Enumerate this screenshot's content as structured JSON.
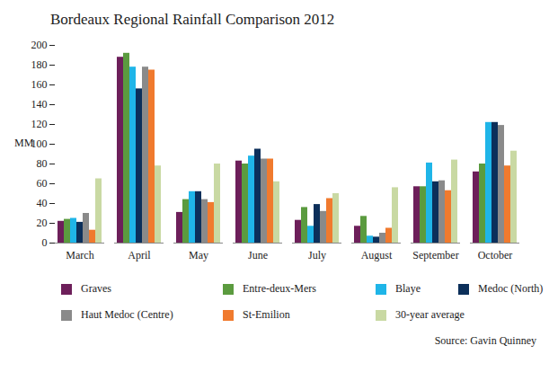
{
  "chart_data": {
    "type": "bar",
    "title": "Bordeaux Regional Rainfall Comparison 2012",
    "y_label": "MM",
    "source": "Source: Gavin Quinney",
    "categories": [
      "March",
      "April",
      "May",
      "June",
      "July",
      "August",
      "September",
      "October"
    ],
    "series": [
      {
        "name": "Graves",
        "color": "#6d1f5a",
        "values": [
          22,
          188,
          31,
          83,
          23,
          17,
          57,
          72
        ]
      },
      {
        "name": "Entre-deux-Mers",
        "color": "#5b9b3f",
        "values": [
          24,
          192,
          44,
          80,
          36,
          27,
          57,
          80
        ]
      },
      {
        "name": "Blaye",
        "color": "#1fb5e8",
        "values": [
          25,
          178,
          52,
          88,
          17,
          7,
          81,
          122
        ]
      },
      {
        "name": "Medoc (North)",
        "color": "#0c2f5a",
        "values": [
          21,
          156,
          52,
          95,
          39,
          6,
          62,
          122
        ]
      },
      {
        "name": "Haut Medoc (Centre)",
        "color": "#8a8a8a",
        "values": [
          30,
          178,
          44,
          85,
          32,
          10,
          63,
          119
        ]
      },
      {
        "name": "St-Emilion",
        "color": "#f07a2e",
        "values": [
          13,
          175,
          41,
          85,
          45,
          15,
          53,
          78
        ]
      },
      {
        "name": "30-year average",
        "color": "#c9d9a3",
        "values": [
          65,
          78,
          80,
          62,
          50,
          56,
          84,
          93
        ]
      }
    ],
    "ylim": [
      0,
      200
    ],
    "yticks": [
      0,
      20,
      40,
      60,
      80,
      100,
      120,
      140,
      160,
      180,
      200
    ],
    "grid": false,
    "legend": "bottom"
  }
}
